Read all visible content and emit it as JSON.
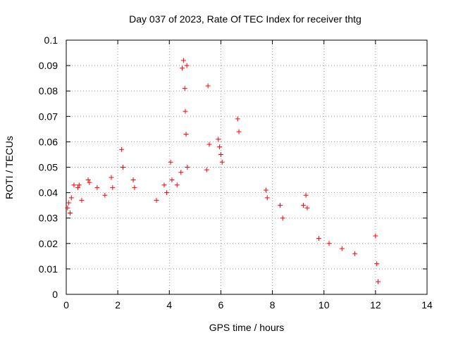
{
  "chart_data": {
    "type": "scatter",
    "title": "Day 037 of 2023, Rate Of TEC Index for receiver thtg",
    "xlabel": "GPS time / hours",
    "ylabel": "ROTI / TECUs",
    "xlim": [
      0,
      14
    ],
    "ylim": [
      0,
      0.1
    ],
    "x_ticks": [
      "0",
      "2",
      "4",
      "6",
      "8",
      "10",
      "12",
      "14"
    ],
    "y_ticks": [
      "0",
      "0.01",
      "0.02",
      "0.03",
      "0.04",
      "0.05",
      "0.06",
      "0.07",
      "0.08",
      "0.09",
      "0.1"
    ],
    "grid": true,
    "marker": "+",
    "color": "#ff0000",
    "series": [
      {
        "x": [
          0.05,
          0.1,
          0.15,
          0.2,
          0.3,
          0.45,
          0.5,
          0.6,
          0.85,
          0.9,
          1.2,
          1.5,
          1.75,
          1.8,
          2.15,
          2.2,
          2.6,
          2.65,
          3.5,
          3.8,
          3.9,
          4.05,
          4.1,
          4.3,
          4.45,
          4.5,
          4.55,
          4.6,
          4.62,
          4.65,
          4.68,
          4.7,
          5.45,
          5.5,
          5.55,
          5.9,
          5.95,
          6.0,
          6.05,
          6.65,
          6.7,
          7.75,
          7.8,
          8.3,
          8.4,
          9.2,
          9.3,
          9.35,
          9.8,
          10.2,
          10.7,
          11.2,
          12.0,
          12.05,
          12.1
        ],
        "y": [
          0.034,
          0.036,
          0.032,
          0.038,
          0.043,
          0.042,
          0.043,
          0.037,
          0.045,
          0.044,
          0.042,
          0.039,
          0.046,
          0.042,
          0.057,
          0.05,
          0.045,
          0.042,
          0.037,
          0.043,
          0.04,
          0.052,
          0.045,
          0.043,
          0.048,
          0.089,
          0.092,
          0.081,
          0.072,
          0.063,
          0.09,
          0.05,
          0.049,
          0.082,
          0.059,
          0.061,
          0.058,
          0.055,
          0.052,
          0.069,
          0.064,
          0.041,
          0.038,
          0.035,
          0.03,
          0.035,
          0.039,
          0.034,
          0.022,
          0.02,
          0.018,
          0.016,
          0.023,
          0.012,
          0.005
        ]
      }
    ]
  }
}
